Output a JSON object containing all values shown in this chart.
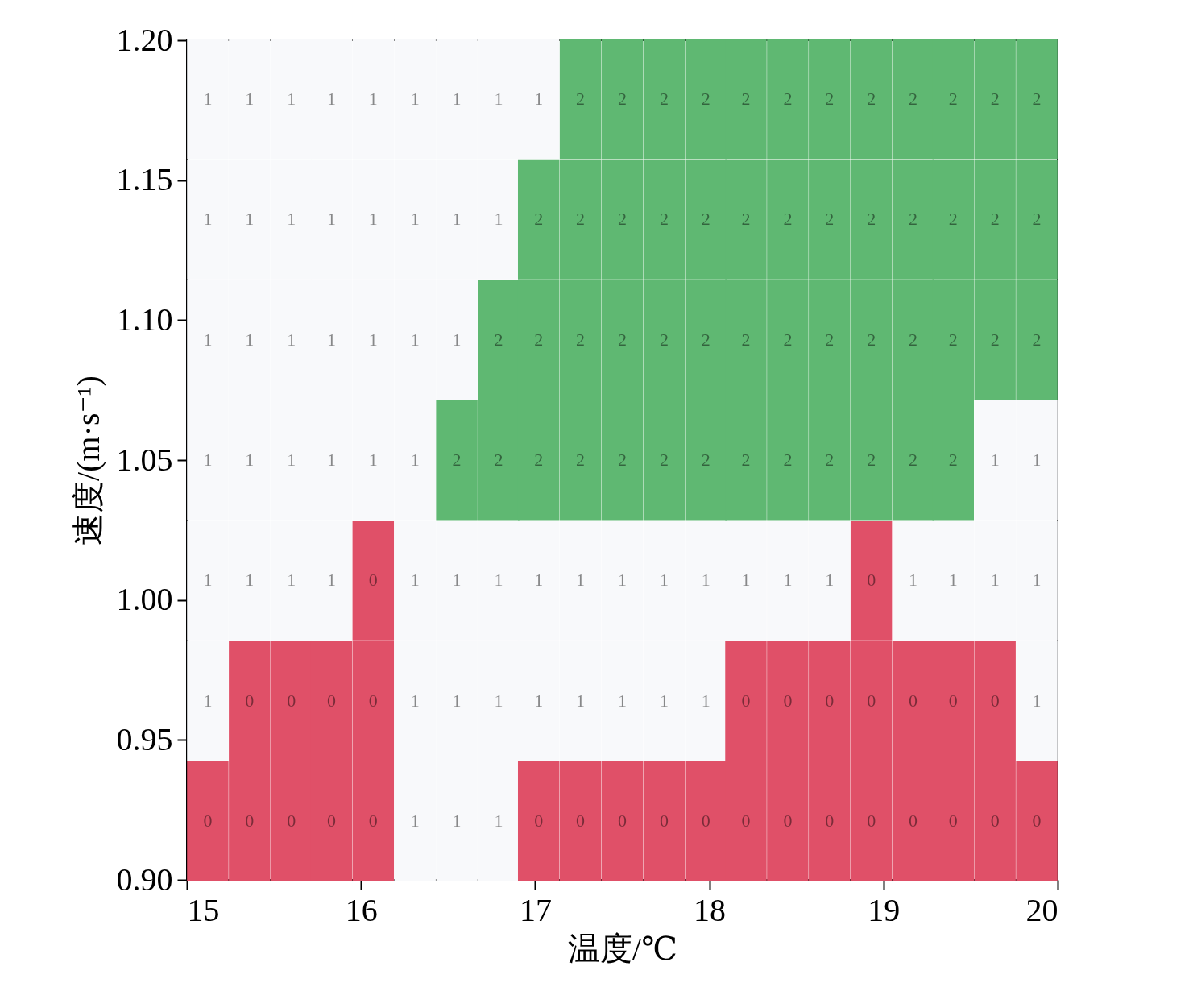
{
  "chart_data": {
    "type": "heatmap",
    "xlabel": "温度/℃",
    "ylabel": "速度/(m·s⁻¹)",
    "x": [
      15.12,
      15.36,
      15.6,
      15.83,
      16.07,
      16.31,
      16.55,
      16.79,
      17.02,
      17.26,
      17.5,
      17.74,
      17.98,
      18.21,
      18.45,
      18.69,
      18.93,
      19.17,
      19.4,
      19.64,
      19.88
    ],
    "y": [
      1.179,
      1.136,
      1.093,
      1.05,
      1.007,
      0.964,
      0.921
    ],
    "data_labels": true,
    "cells": [
      [
        1,
        1,
        1,
        1,
        1,
        1,
        1,
        1,
        1,
        2,
        2,
        2,
        2,
        2,
        2,
        2,
        2,
        2,
        2,
        2,
        2
      ],
      [
        1,
        1,
        1,
        1,
        1,
        1,
        1,
        1,
        2,
        2,
        2,
        2,
        2,
        2,
        2,
        2,
        2,
        2,
        2,
        2,
        2
      ],
      [
        1,
        1,
        1,
        1,
        1,
        1,
        1,
        2,
        2,
        2,
        2,
        2,
        2,
        2,
        2,
        2,
        2,
        2,
        2,
        2,
        2
      ],
      [
        1,
        1,
        1,
        1,
        1,
        1,
        2,
        2,
        2,
        2,
        2,
        2,
        2,
        2,
        2,
        2,
        2,
        2,
        2,
        1,
        1
      ],
      [
        1,
        1,
        1,
        1,
        0,
        1,
        1,
        1,
        1,
        1,
        1,
        1,
        1,
        1,
        1,
        1,
        0,
        1,
        1,
        1,
        1
      ],
      [
        1,
        0,
        0,
        0,
        0,
        1,
        1,
        1,
        1,
        1,
        1,
        1,
        1,
        0,
        0,
        0,
        0,
        0,
        0,
        0,
        1
      ],
      [
        0,
        0,
        0,
        0,
        0,
        1,
        1,
        1,
        0,
        0,
        0,
        0,
        0,
        0,
        0,
        0,
        0,
        0,
        0,
        0,
        0
      ]
    ],
    "colors": [
      "#e05068",
      "#f8f9fb",
      "#5fb872"
    ],
    "xlim": [
      15,
      20
    ],
    "ylim": [
      0.9,
      1.2
    ],
    "xticks": [
      15,
      16,
      17,
      18,
      19,
      20
    ],
    "yticks": [
      {
        "value": 0.9,
        "label": "0.90"
      },
      0.95,
      {
        "value": 1.0,
        "label": "1.00"
      },
      1.05,
      {
        "value": 1.1,
        "label": "1.10"
      },
      1.15,
      {
        "value": 1.2,
        "label": "1.20"
      }
    ]
  }
}
